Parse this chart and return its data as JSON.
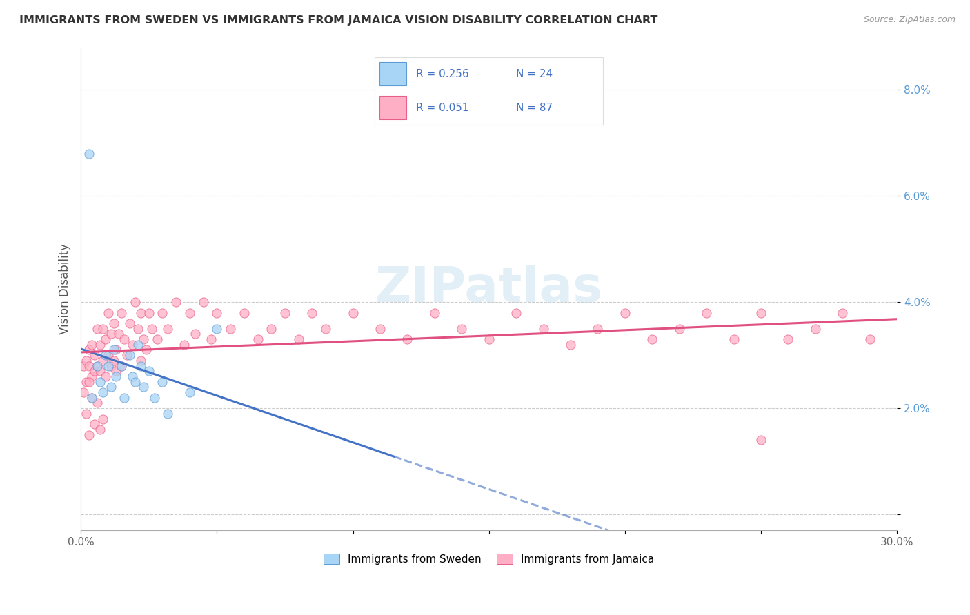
{
  "title": "IMMIGRANTS FROM SWEDEN VS IMMIGRANTS FROM JAMAICA VISION DISABILITY CORRELATION CHART",
  "source": "Source: ZipAtlas.com",
  "ylabel_text": "Vision Disability",
  "xlim": [
    0.0,
    0.3
  ],
  "ylim": [
    -0.003,
    0.088
  ],
  "xticks": [
    0.0,
    0.05,
    0.1,
    0.15,
    0.2,
    0.25,
    0.3
  ],
  "xtick_labels": [
    "0.0%",
    "",
    "",
    "",
    "",
    "",
    "30.0%"
  ],
  "yticks": [
    0.0,
    0.02,
    0.04,
    0.06,
    0.08
  ],
  "ytick_labels": [
    "",
    "2.0%",
    "4.0%",
    "6.0%",
    "8.0%"
  ],
  "sweden_scatter_color": "#a8d4f5",
  "jamaica_scatter_color": "#ffafc5",
  "sweden_edge_color": "#5b9bd5",
  "jamaica_edge_color": "#e8608a",
  "sweden_line_color": "#4472c4",
  "jamaica_line_color": "#e05080",
  "background_color": "#ffffff",
  "grid_color": "#cccccc",
  "watermark_color": "#c8e0f0",
  "sweden_x": [
    0.004,
    0.006,
    0.007,
    0.008,
    0.009,
    0.01,
    0.011,
    0.012,
    0.013,
    0.015,
    0.016,
    0.018,
    0.019,
    0.02,
    0.021,
    0.022,
    0.023,
    0.025,
    0.027,
    0.03,
    0.032,
    0.04,
    0.05,
    0.003
  ],
  "sweden_y": [
    0.022,
    0.028,
    0.025,
    0.023,
    0.03,
    0.028,
    0.024,
    0.031,
    0.026,
    0.028,
    0.022,
    0.03,
    0.026,
    0.025,
    0.032,
    0.028,
    0.024,
    0.027,
    0.022,
    0.025,
    0.019,
    0.023,
    0.035,
    0.068
  ],
  "jamaica_x": [
    0.001,
    0.002,
    0.002,
    0.003,
    0.003,
    0.004,
    0.004,
    0.005,
    0.005,
    0.006,
    0.006,
    0.007,
    0.007,
    0.008,
    0.008,
    0.009,
    0.009,
    0.01,
    0.01,
    0.011,
    0.011,
    0.012,
    0.012,
    0.013,
    0.013,
    0.014,
    0.015,
    0.015,
    0.016,
    0.017,
    0.018,
    0.019,
    0.02,
    0.021,
    0.022,
    0.022,
    0.023,
    0.024,
    0.025,
    0.026,
    0.028,
    0.03,
    0.032,
    0.035,
    0.038,
    0.04,
    0.042,
    0.045,
    0.048,
    0.05,
    0.055,
    0.06,
    0.065,
    0.07,
    0.075,
    0.08,
    0.085,
    0.09,
    0.1,
    0.11,
    0.12,
    0.13,
    0.14,
    0.15,
    0.16,
    0.17,
    0.18,
    0.19,
    0.2,
    0.21,
    0.22,
    0.23,
    0.24,
    0.25,
    0.26,
    0.27,
    0.28,
    0.29,
    0.001,
    0.002,
    0.003,
    0.004,
    0.005,
    0.006,
    0.007,
    0.008,
    0.003,
    0.25
  ],
  "jamaica_y": [
    0.028,
    0.029,
    0.025,
    0.031,
    0.028,
    0.026,
    0.032,
    0.03,
    0.027,
    0.035,
    0.028,
    0.032,
    0.027,
    0.035,
    0.029,
    0.033,
    0.026,
    0.038,
    0.03,
    0.034,
    0.028,
    0.036,
    0.029,
    0.031,
    0.027,
    0.034,
    0.038,
    0.028,
    0.033,
    0.03,
    0.036,
    0.032,
    0.04,
    0.035,
    0.029,
    0.038,
    0.033,
    0.031,
    0.038,
    0.035,
    0.033,
    0.038,
    0.035,
    0.04,
    0.032,
    0.038,
    0.034,
    0.04,
    0.033,
    0.038,
    0.035,
    0.038,
    0.033,
    0.035,
    0.038,
    0.033,
    0.038,
    0.035,
    0.038,
    0.035,
    0.033,
    0.038,
    0.035,
    0.033,
    0.038,
    0.035,
    0.032,
    0.035,
    0.038,
    0.033,
    0.035,
    0.038,
    0.033,
    0.038,
    0.033,
    0.035,
    0.038,
    0.033,
    0.023,
    0.019,
    0.025,
    0.022,
    0.017,
    0.021,
    0.016,
    0.018,
    0.015,
    0.014
  ]
}
